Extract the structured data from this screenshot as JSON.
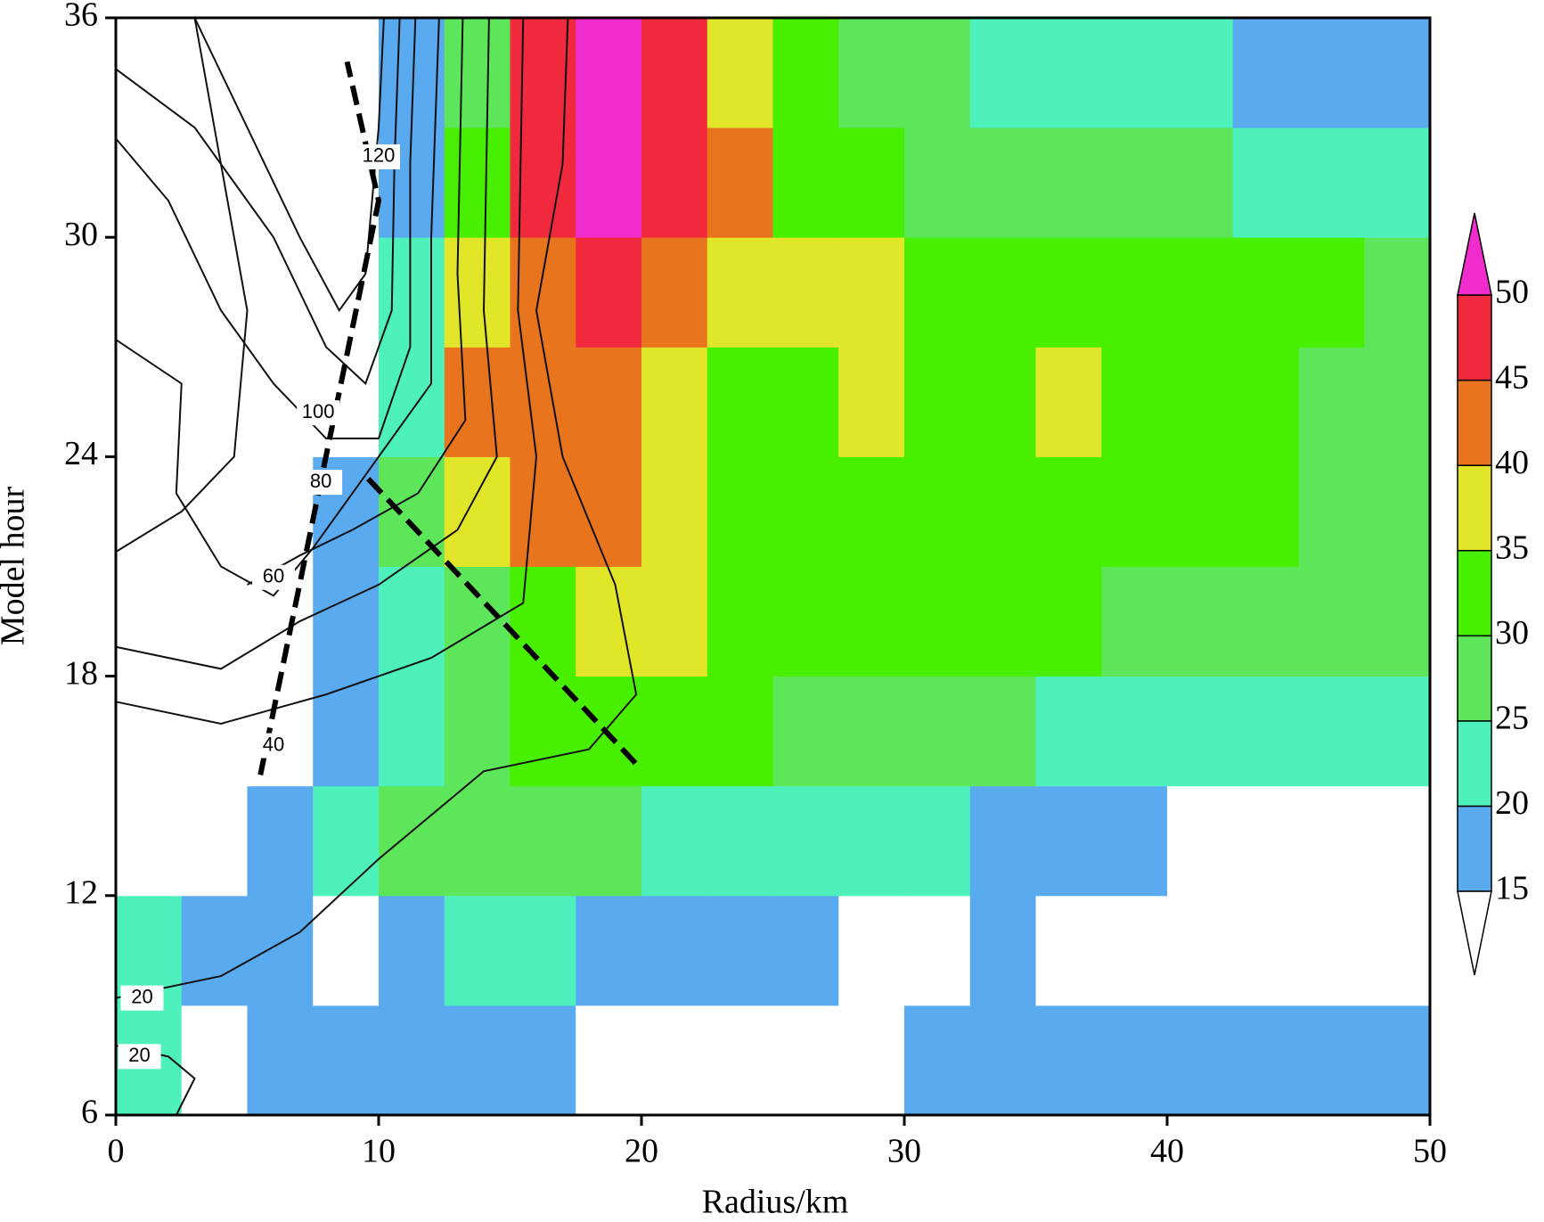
{
  "chart_data": {
    "type": "heatmap",
    "xlabel": "Radius/km",
    "ylabel": "Model hour",
    "xlim": [
      0,
      50
    ],
    "ylim": [
      6,
      36
    ],
    "xticks": [
      0,
      10,
      20,
      30,
      40,
      50
    ],
    "yticks": [
      6,
      12,
      18,
      24,
      30,
      36
    ],
    "colorbar": {
      "levels": [
        15,
        20,
        25,
        30,
        35,
        40,
        45,
        50
      ],
      "colors": [
        "#ffffff",
        "#5aaaf0",
        "#4ef0bc",
        "#5ee65a",
        "#48f000",
        "#e2e628",
        "#e8741e",
        "#f02a3c",
        "#f02ccc"
      ]
    },
    "field": {
      "x_edges": [
        0,
        2.5,
        5,
        7.5,
        10,
        12.5,
        15,
        17.5,
        20,
        22.5,
        25,
        27.5,
        30,
        32.5,
        35,
        37.5,
        40,
        42.5,
        45,
        47.5,
        50
      ],
      "y_edges": [
        6,
        9,
        12,
        15,
        18,
        21,
        24,
        27,
        30,
        33,
        36
      ],
      "values": [
        [
          22,
          14,
          17,
          17,
          17,
          17,
          17,
          14,
          14,
          14,
          14,
          14,
          17,
          17,
          17,
          17,
          17,
          17,
          17,
          17
        ],
        [
          23,
          17,
          17,
          14,
          17,
          22,
          22,
          17,
          17,
          17,
          17,
          14,
          14,
          17,
          14,
          14,
          14,
          14,
          14,
          14
        ],
        [
          14,
          14,
          17,
          22,
          27,
          27,
          27,
          27,
          22,
          22,
          22,
          22,
          22,
          17,
          17,
          17,
          14,
          14,
          14,
          14
        ],
        [
          14,
          14,
          14,
          17,
          22,
          27,
          32,
          32,
          32,
          32,
          27,
          27,
          27,
          27,
          22,
          22,
          22,
          22,
          22,
          22
        ],
        [
          10,
          10,
          10,
          17,
          22,
          27,
          32,
          37,
          37,
          32,
          32,
          32,
          32,
          32,
          32,
          27,
          27,
          27,
          27,
          27
        ],
        [
          10,
          10,
          10,
          17,
          27,
          37,
          42,
          42,
          37,
          32,
          32,
          32,
          32,
          32,
          32,
          32,
          32,
          32,
          27,
          27
        ],
        [
          10,
          10,
          10,
          10,
          22,
          42,
          43,
          42,
          37,
          32,
          32,
          37,
          32,
          32,
          37,
          32,
          32,
          32,
          27,
          27
        ],
        [
          10,
          10,
          10,
          10,
          22,
          37,
          42,
          47,
          42,
          37,
          37,
          37,
          32,
          32,
          32,
          32,
          32,
          32,
          32,
          27
        ],
        [
          10,
          10,
          10,
          10,
          17,
          32,
          47,
          52,
          47,
          42,
          32,
          32,
          27,
          27,
          27,
          27,
          27,
          22,
          22,
          22
        ],
        [
          10,
          10,
          10,
          10,
          17,
          27,
          47,
          52,
          47,
          37,
          32,
          27,
          27,
          22,
          22,
          22,
          22,
          17,
          17,
          17
        ]
      ]
    },
    "contour_labels": [
      20,
      20,
      40,
      60,
      80,
      100,
      120
    ]
  }
}
